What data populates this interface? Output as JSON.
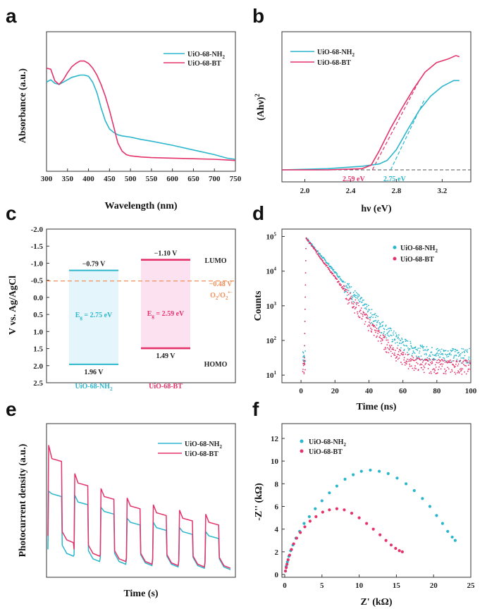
{
  "figure": {
    "panel_labels": [
      "a",
      "b",
      "c",
      "d",
      "e",
      "f"
    ],
    "colors": {
      "nh2": "#2bb6cc",
      "bt": "#e3336a",
      "orange": "#f0905a",
      "dashed": "#555555"
    }
  },
  "chart_data": [
    {
      "panel": "a",
      "type": "line",
      "xlabel": "Wavelength (nm)",
      "ylabel": "Absorbance (a.u.)",
      "xlim": [
        300,
        750
      ],
      "xticks": [
        "300",
        "350",
        "400",
        "450",
        "500",
        "550",
        "600",
        "650",
        "700",
        "750"
      ],
      "legend": [
        {
          "name": "UiO-68-NH",
          "sub": "2"
        },
        {
          "name": "UiO-68-BT",
          "sub": ""
        }
      ],
      "legend_position": "top-right",
      "series": [
        {
          "name": "UiO-68-NH2",
          "color": "#2bb6cc",
          "x": [
            300,
            310,
            320,
            330,
            340,
            350,
            360,
            370,
            380,
            390,
            400,
            410,
            420,
            430,
            440,
            450,
            460,
            470,
            480,
            490,
            500,
            525,
            550,
            600,
            650,
            700,
            730,
            750
          ],
          "y": [
            0.72,
            0.74,
            0.71,
            0.7,
            0.72,
            0.74,
            0.76,
            0.77,
            0.78,
            0.78,
            0.77,
            0.72,
            0.63,
            0.5,
            0.39,
            0.32,
            0.29,
            0.27,
            0.26,
            0.255,
            0.25,
            0.23,
            0.215,
            0.18,
            0.14,
            0.1,
            0.07,
            0.06
          ]
        },
        {
          "name": "UiO-68-BT",
          "color": "#e3336a",
          "x": [
            300,
            310,
            320,
            330,
            340,
            350,
            360,
            370,
            380,
            390,
            400,
            410,
            420,
            430,
            440,
            450,
            460,
            470,
            480,
            490,
            500,
            525,
            550,
            600,
            650,
            700,
            730,
            750
          ],
          "y": [
            0.84,
            0.83,
            0.73,
            0.7,
            0.74,
            0.8,
            0.85,
            0.88,
            0.9,
            0.9,
            0.88,
            0.84,
            0.78,
            0.7,
            0.6,
            0.48,
            0.34,
            0.2,
            0.13,
            0.1,
            0.09,
            0.08,
            0.075,
            0.07,
            0.065,
            0.06,
            0.055,
            0.05
          ]
        }
      ]
    },
    {
      "panel": "b",
      "type": "line",
      "xlabel": "hν (eV)",
      "ylabel": "(Ahν)",
      "ylabel_sup": "2",
      "xlim": [
        1.8,
        3.45
      ],
      "xticks": [
        "2.0",
        "2.4",
        "2.8",
        "3.2"
      ],
      "legend": [
        {
          "name": "UiO-68-NH",
          "sub": "2"
        },
        {
          "name": "UiO-68-BT",
          "sub": ""
        }
      ],
      "legend_position": "top-left",
      "annotations": [
        {
          "text": "2.59 eV",
          "x": 2.59,
          "color": "#e3336a"
        },
        {
          "text": "2.75 eV",
          "x": 2.75,
          "color": "#2bb6cc"
        }
      ],
      "series": [
        {
          "name": "UiO-68-NH2",
          "color": "#2bb6cc",
          "x": [
            1.8,
            2.2,
            2.5,
            2.65,
            2.72,
            2.8,
            2.9,
            3.0,
            3.1,
            3.2,
            3.3,
            3.35
          ],
          "y": [
            0.0,
            0.01,
            0.03,
            0.05,
            0.08,
            0.17,
            0.34,
            0.5,
            0.62,
            0.7,
            0.75,
            0.75
          ]
        },
        {
          "name": "UiO-68-BT",
          "color": "#e3336a",
          "x": [
            1.8,
            2.2,
            2.5,
            2.58,
            2.65,
            2.75,
            2.85,
            2.95,
            3.05,
            3.15,
            3.25,
            3.32,
            3.35
          ],
          "y": [
            0.0,
            0.0,
            0.01,
            0.04,
            0.16,
            0.35,
            0.52,
            0.68,
            0.82,
            0.9,
            0.93,
            0.96,
            0.95
          ]
        }
      ],
      "tangents": [
        {
          "color": "#e3336a",
          "x": [
            2.59,
            3.0
          ],
          "y": [
            0.0,
            0.75
          ]
        },
        {
          "color": "#2bb6cc",
          "x": [
            2.75,
            3.05
          ],
          "y": [
            0.0,
            0.6
          ]
        }
      ]
    },
    {
      "panel": "c",
      "type": "diagram",
      "ylabel": "V vs. Ag/AgCl",
      "ylim": [
        -2.0,
        2.5
      ],
      "yticks": [
        "-2.0",
        "-1.5",
        "-1.0",
        "-0.5",
        "0.0",
        "0.5",
        "1.0",
        "1.5",
        "2.0",
        "2.5"
      ],
      "yticks_values": [
        -2.0,
        -1.5,
        -1.0,
        -0.5,
        0.0,
        0.5,
        1.0,
        1.5,
        2.0,
        2.5
      ],
      "materials": [
        {
          "name": "UiO-68-NH",
          "sub": "2",
          "lumo": -0.79,
          "homo": 1.96,
          "lumo_label": "−0.79 V",
          "homo_label": "1.96 V",
          "eg_label": "E",
          "eg_sub": "g",
          "eg_value": " = 2.75 eV",
          "color": "#2bb6cc"
        },
        {
          "name": "UiO-68-BT",
          "sub": "",
          "lumo": -1.1,
          "homo": 1.49,
          "lumo_label": "−1.10 V",
          "homo_label": "1.49 V",
          "eg_label": "E",
          "eg_sub": "g",
          "eg_value": " = 2.59 eV",
          "color": "#e3336a"
        }
      ],
      "reference": {
        "value": -0.48,
        "label": "−0.48 V",
        "couple": "O",
        "couple_sub": "2",
        "couple_rest": "/O",
        "couple_sub2": "2",
        "couple_sup": "•−"
      },
      "lumo_text": "LUMO",
      "homo_text": "HOMO"
    },
    {
      "panel": "d",
      "type": "scatter",
      "xlabel": "Time (ns)",
      "ylabel": "Counts",
      "xlim": [
        -10,
        100
      ],
      "xticks": [
        "0",
        "20",
        "40",
        "60",
        "80",
        "100"
      ],
      "ylog": true,
      "yticks": [
        {
          "base": "10",
          "exp": "1"
        },
        {
          "base": "10",
          "exp": "2"
        },
        {
          "base": "10",
          "exp": "3"
        },
        {
          "base": "10",
          "exp": "4"
        },
        {
          "base": "10",
          "exp": "5"
        }
      ],
      "legend": [
        {
          "name": "UiO-68-NH",
          "sub": "2"
        },
        {
          "name": "UiO-68-BT",
          "sub": ""
        }
      ],
      "legend_position": "top-right",
      "series": [
        {
          "name": "UiO-68-NH2",
          "color": "#2bb6cc",
          "peak_time": 3,
          "peak": 90000,
          "tau": 7.5,
          "floor": 40
        },
        {
          "name": "UiO-68-BT",
          "color": "#e3336a",
          "peak_time": 3,
          "peak": 90000,
          "tau": 6.5,
          "floor": 19
        }
      ]
    },
    {
      "panel": "e",
      "type": "line",
      "xlabel": "Time (s)",
      "ylabel": "Photocurrent density (a.u.)",
      "legend": [
        {
          "name": "UiO-68-NH",
          "sub": "2"
        },
        {
          "name": "UiO-68-BT",
          "sub": ""
        }
      ],
      "legend_position": "top-right",
      "cycles": 7,
      "series": [
        {
          "name": "UiO-68-NH2",
          "color": "#2bb6cc",
          "on_high": [
            0.6,
            0.57,
            0.48,
            0.4,
            0.37,
            0.33,
            0.3
          ],
          "on_low": [
            0.56,
            0.5,
            0.43,
            0.35,
            0.31,
            0.28,
            0.25
          ],
          "off": [
            0.12,
            0.08,
            0.06,
            0.05,
            0.04,
            0.03,
            0.02
          ]
        },
        {
          "name": "UiO-68-BT",
          "color": "#e3336a",
          "on_high": [
            0.94,
            0.73,
            0.62,
            0.55,
            0.5,
            0.46,
            0.43
          ],
          "on_low": [
            0.82,
            0.64,
            0.54,
            0.47,
            0.42,
            0.38,
            0.35
          ],
          "off": [
            0.22,
            0.12,
            0.08,
            0.06,
            0.05,
            0.04,
            0.03
          ]
        }
      ]
    },
    {
      "panel": "f",
      "type": "scatter",
      "xlabel": "Z' (kΩ)",
      "ylabel": "-Z'' (kΩ)",
      "xlim": [
        0,
        25
      ],
      "ylim": [
        0,
        12
      ],
      "xticks": [
        "0",
        "5",
        "10",
        "15",
        "20",
        "25"
      ],
      "yticks": [
        "0",
        "2",
        "4",
        "6",
        "8",
        "10",
        "12"
      ],
      "legend": [
        {
          "name": "UiO-68-NH",
          "sub": "2"
        },
        {
          "name": "UiO-68-BT",
          "sub": ""
        }
      ],
      "legend_position": "top-left",
      "series": [
        {
          "name": "UiO-68-NH2",
          "color": "#2bb6cc",
          "x": [
            0.1,
            0.2,
            0.35,
            0.55,
            0.8,
            1.1,
            1.5,
            2.0,
            2.6,
            3.3,
            4.1,
            5.0,
            6.0,
            7.0,
            8.1,
            9.2,
            10.3,
            11.5,
            12.7,
            13.9,
            15.1,
            16.3,
            17.4,
            18.5,
            19.5,
            20.4,
            21.2,
            21.9,
            22.5,
            22.9
          ],
          "y": [
            0.3,
            0.7,
            1.1,
            1.6,
            2.1,
            2.6,
            3.2,
            3.8,
            4.5,
            5.1,
            5.8,
            6.5,
            7.2,
            7.8,
            8.4,
            8.8,
            9.1,
            9.2,
            9.1,
            8.9,
            8.5,
            8.0,
            7.4,
            6.7,
            6.0,
            5.2,
            4.5,
            3.8,
            3.3,
            3.0
          ]
        },
        {
          "name": "UiO-68-BT",
          "color": "#e3336a",
          "x": [
            0.1,
            0.2,
            0.3,
            0.45,
            0.65,
            0.9,
            1.2,
            1.6,
            2.1,
            2.7,
            3.4,
            4.2,
            5.1,
            6.0,
            7.0,
            8.0,
            9.0,
            10.0,
            11.0,
            11.9,
            12.8,
            13.6,
            14.3,
            14.9,
            15.4,
            15.8
          ],
          "y": [
            0.3,
            0.6,
            0.9,
            1.3,
            1.7,
            2.2,
            2.7,
            3.2,
            3.7,
            4.2,
            4.7,
            5.1,
            5.5,
            5.7,
            5.8,
            5.7,
            5.4,
            5.0,
            4.5,
            4.0,
            3.5,
            3.0,
            2.6,
            2.3,
            2.1,
            2.0
          ]
        }
      ]
    }
  ]
}
